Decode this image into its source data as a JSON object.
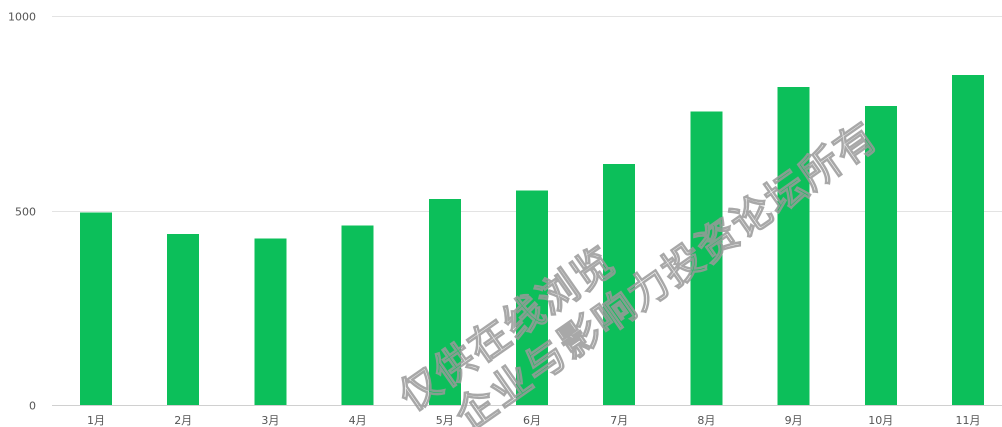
{
  "chart_data": {
    "type": "bar",
    "categories": [
      "1月",
      "2月",
      "3月",
      "4月",
      "5月",
      "6月",
      "7月",
      "8月",
      "9月",
      "10月",
      "11月"
    ],
    "values": [
      495,
      440,
      428,
      462,
      530,
      552,
      620,
      755,
      818,
      768,
      848
    ],
    "title": "",
    "xlabel": "",
    "ylabel": "",
    "ylim": [
      0,
      1000
    ],
    "yticks": [
      0,
      500,
      1000
    ],
    "grid": true,
    "bar_color": "#0cbf5a"
  },
  "watermark": {
    "line1": "仅供在线浏览",
    "line2": "企业与影响力投资论坛所有"
  }
}
